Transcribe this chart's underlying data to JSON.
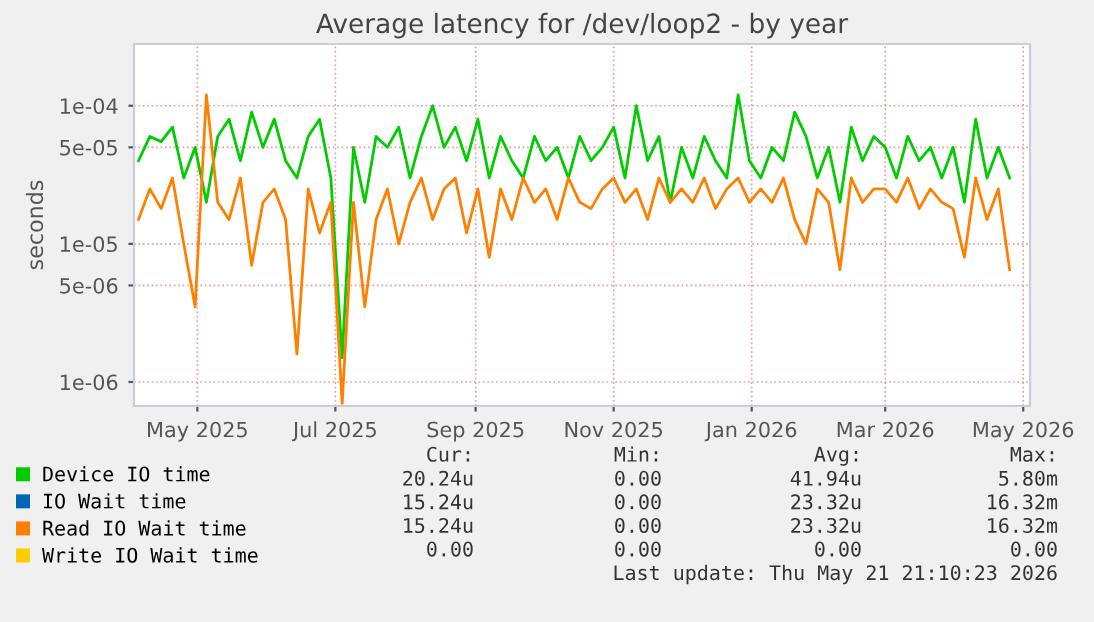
{
  "chart_data": {
    "type": "line",
    "title": "Average latency for /dev/loop2 - by year",
    "ylabel": "seconds",
    "x": [
      "2025-04-05",
      "2025-04-10",
      "2025-04-15",
      "2025-04-20",
      "2025-04-25",
      "2025-04-30",
      "2025-05-05",
      "2025-05-10",
      "2025-05-15",
      "2025-05-20",
      "2025-05-25",
      "2025-05-30",
      "2025-06-04",
      "2025-06-09",
      "2025-06-14",
      "2025-06-19",
      "2025-06-24",
      "2025-06-29",
      "2025-07-04",
      "2025-07-09",
      "2025-07-14",
      "2025-07-19",
      "2025-07-24",
      "2025-07-29",
      "2025-08-03",
      "2025-08-08",
      "2025-08-13",
      "2025-08-18",
      "2025-08-23",
      "2025-08-28",
      "2025-09-02",
      "2025-09-07",
      "2025-09-12",
      "2025-09-17",
      "2025-09-22",
      "2025-09-27",
      "2025-10-02",
      "2025-10-07",
      "2025-10-12",
      "2025-10-17",
      "2025-10-22",
      "2025-10-27",
      "2025-11-01",
      "2025-11-06",
      "2025-11-11",
      "2025-11-16",
      "2025-11-21",
      "2025-11-26",
      "2025-12-01",
      "2025-12-06",
      "2025-12-11",
      "2025-12-16",
      "2025-12-21",
      "2025-12-26",
      "2025-12-31",
      "2026-01-05",
      "2026-01-10",
      "2026-01-15",
      "2026-01-20",
      "2026-01-25",
      "2026-01-30",
      "2026-02-04",
      "2026-02-09",
      "2026-02-14",
      "2026-02-19",
      "2026-02-24",
      "2026-03-01",
      "2026-03-06",
      "2026-03-11",
      "2026-03-16",
      "2026-03-21",
      "2026-03-26",
      "2026-03-31",
      "2026-04-05",
      "2026-04-10",
      "2026-04-15",
      "2026-04-20",
      "2026-04-25"
    ],
    "series": [
      {
        "name": "Device IO time",
        "color": "#00cc00",
        "values": [
          4e-05,
          6e-05,
          5.5e-05,
          7e-05,
          3e-05,
          5e-05,
          2e-05,
          6e-05,
          8e-05,
          4e-05,
          9e-05,
          5e-05,
          8e-05,
          4e-05,
          3e-05,
          6e-05,
          8e-05,
          3e-05,
          1.5e-06,
          5e-05,
          2e-05,
          6e-05,
          5e-05,
          7e-05,
          3e-05,
          6e-05,
          0.0001,
          5e-05,
          7e-05,
          4e-05,
          8e-05,
          3e-05,
          6e-05,
          4e-05,
          3e-05,
          6e-05,
          4e-05,
          5e-05,
          3e-05,
          6e-05,
          4e-05,
          5e-05,
          7e-05,
          3e-05,
          0.0001,
          4e-05,
          6e-05,
          2e-05,
          5e-05,
          3e-05,
          6e-05,
          4e-05,
          3e-05,
          0.00012,
          4e-05,
          3e-05,
          5e-05,
          4e-05,
          9e-05,
          6e-05,
          3e-05,
          5e-05,
          2e-05,
          7e-05,
          4e-05,
          6e-05,
          5e-05,
          3e-05,
          6e-05,
          4e-05,
          5e-05,
          3e-05,
          5e-05,
          2e-05,
          8e-05,
          3e-05,
          5e-05,
          3e-05
        ]
      },
      {
        "name": "IO Wait time",
        "color": "#0066b3",
        "values": [
          null,
          null,
          null,
          null,
          null,
          null,
          null,
          null,
          null,
          null,
          null,
          null,
          null,
          null,
          null,
          null,
          null,
          null,
          null,
          null,
          null,
          null,
          null,
          null,
          null,
          null,
          null,
          null,
          null,
          null,
          null,
          null,
          null,
          null,
          null,
          null,
          null,
          null,
          null,
          null,
          null,
          null,
          null,
          null,
          null,
          null,
          null,
          null,
          null,
          null,
          null,
          null,
          null,
          null,
          null,
          null,
          null,
          null,
          null,
          null,
          null,
          null,
          null,
          null,
          null,
          null,
          null,
          null,
          null,
          null,
          null,
          null,
          null,
          null,
          null,
          null,
          null,
          null
        ]
      },
      {
        "name": "Read IO Wait time",
        "color": "#ff8000",
        "values": [
          1.5e-05,
          2.5e-05,
          1.8e-05,
          3e-05,
          1e-05,
          3.5e-06,
          0.00012,
          2e-05,
          1.5e-05,
          3e-05,
          7e-06,
          2e-05,
          2.5e-05,
          1.5e-05,
          1.6e-06,
          2.5e-05,
          1.2e-05,
          2e-05,
          7e-07,
          2e-05,
          3.5e-06,
          1.5e-05,
          2.5e-05,
          1e-05,
          2e-05,
          3e-05,
          1.5e-05,
          2.5e-05,
          3e-05,
          1.2e-05,
          2.5e-05,
          8e-06,
          2.5e-05,
          1.5e-05,
          3e-05,
          2e-05,
          2.5e-05,
          1.5e-05,
          3e-05,
          2e-05,
          1.8e-05,
          2.5e-05,
          3e-05,
          2e-05,
          2.5e-05,
          1.5e-05,
          3e-05,
          2e-05,
          2.5e-05,
          2e-05,
          3e-05,
          1.8e-05,
          2.5e-05,
          3e-05,
          2e-05,
          2.5e-05,
          2e-05,
          3e-05,
          1.5e-05,
          1e-05,
          2.5e-05,
          2e-05,
          6.5e-06,
          3e-05,
          2e-05,
          2.5e-05,
          2.5e-05,
          2e-05,
          3e-05,
          1.8e-05,
          2.5e-05,
          2e-05,
          1.8e-05,
          8e-06,
          3e-05,
          1.5e-05,
          2.5e-05,
          6.5e-06
        ]
      },
      {
        "name": "Write IO Wait time",
        "color": "#ffcc00",
        "values": [
          null,
          null,
          null,
          null,
          null,
          null,
          null,
          null,
          null,
          null,
          null,
          null,
          null,
          null,
          null,
          null,
          null,
          null,
          null,
          null,
          null,
          null,
          null,
          null,
          null,
          null,
          null,
          null,
          null,
          null,
          null,
          null,
          null,
          null,
          null,
          null,
          null,
          null,
          null,
          null,
          null,
          null,
          null,
          null,
          null,
          null,
          null,
          null,
          null,
          null,
          null,
          null,
          null,
          null,
          null,
          null,
          null,
          null,
          null,
          null,
          null,
          null,
          null,
          null,
          null,
          null,
          null,
          null,
          null,
          null,
          null,
          null,
          null,
          null,
          null,
          null,
          null,
          null
        ]
      }
    ],
    "log": "y",
    "xlim": [
      "2025-04-03",
      "2026-05-04"
    ],
    "xticks": [
      {
        "value": "2025-05-01",
        "label": "May 2025"
      },
      {
        "value": "2025-07-01",
        "label": "Jul 2025"
      },
      {
        "value": "2025-09-01",
        "label": "Sep 2025"
      },
      {
        "value": "2025-11-01",
        "label": "Nov 2025"
      },
      {
        "value": "2026-01-01",
        "label": "Jan 2026"
      },
      {
        "value": "2026-03-01",
        "label": "Mar 2026"
      },
      {
        "value": "2026-05-01",
        "label": "May 2026"
      }
    ],
    "ylim": [
      6.7e-07,
      0.00028
    ],
    "yticks": [
      {
        "value": 1e-06,
        "label": "1e-06"
      },
      {
        "value": 5e-06,
        "label": "5e-06"
      },
      {
        "value": 1e-05,
        "label": "1e-05"
      },
      {
        "value": 5e-05,
        "label": "5e-05"
      },
      {
        "value": 0.0001,
        "label": "1e-04"
      }
    ],
    "grid": true,
    "legend": "bottom",
    "annotations": [
      "Cur:",
      "Min:",
      "Avg:",
      "Max:",
      "20.24u",
      "0.00",
      "41.94u",
      "5.80m",
      "15.24u",
      "0.00",
      "23.32u",
      "16.32m",
      "15.24u",
      "0.00",
      "23.32u",
      "16.32m",
      "0.00",
      "0.00",
      "0.00",
      "0.00",
      "Last update: Thu May 21 21:10:23 2026"
    ]
  }
}
